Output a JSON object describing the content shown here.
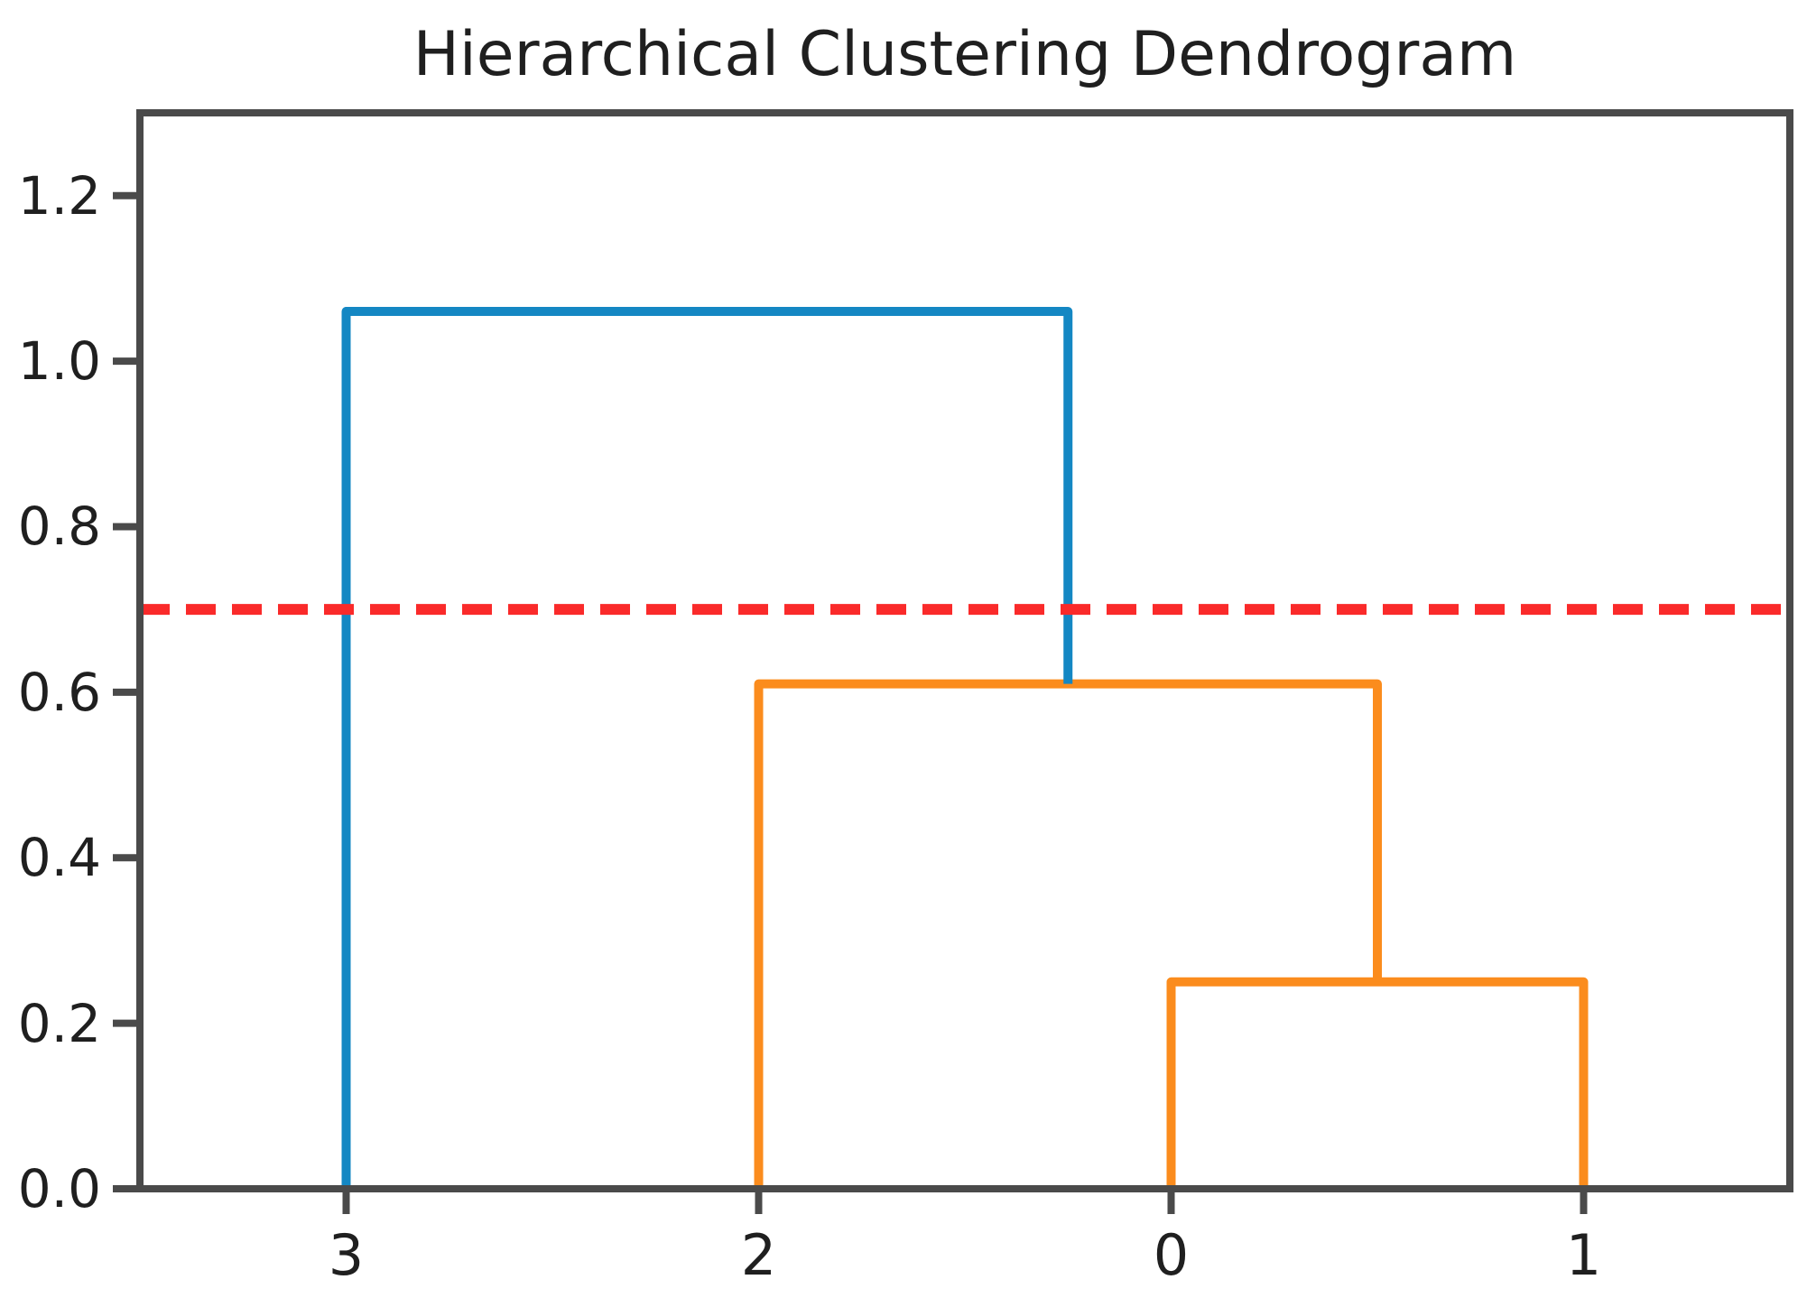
{
  "figure": {
    "title": "Hierarchical Clustering Dendrogram"
  },
  "chart_data": {
    "type": "dendrogram",
    "title": "Hierarchical Clustering Dendrogram",
    "xlabel": "",
    "ylabel": "",
    "xtick_labels": [
      "3",
      "2",
      "0",
      "1"
    ],
    "leaf_positions": [
      5,
      15,
      25,
      35
    ],
    "xlim": [
      0,
      40
    ],
    "ylim": [
      0,
      1.3
    ],
    "yticks": [
      "0.0",
      "0.2",
      "0.4",
      "0.6",
      "0.8",
      "1.0",
      "1.2"
    ],
    "grid": false,
    "legend": null,
    "links": [
      {
        "name": "leaves-0-1",
        "left_x": 25,
        "left_base": 0.0,
        "right_x": 35,
        "right_base": 0.0,
        "height": 0.25,
        "color": "#fb8c1d"
      },
      {
        "name": "cluster01-leaf2",
        "left_x": 15,
        "left_base": 0.0,
        "right_x": 30,
        "right_base": 0.25,
        "height": 0.61,
        "color": "#fb8c1d"
      },
      {
        "name": "root-leaf3-cluster",
        "left_x": 5,
        "left_base": 0.0,
        "right_x": 22.5,
        "right_base": 0.61,
        "height": 1.06,
        "color": "#1487c3"
      }
    ],
    "threshold_line": {
      "y": 0.7,
      "style": "dashed",
      "color": "#fa2a2a"
    },
    "colors": {
      "above_threshold_link": "#1487c3",
      "cluster_link": "#fb8c1d",
      "threshold": "#fa2a2a",
      "axis": "#4a4a4a",
      "text": "#1f1f1f",
      "background": "#ffffff"
    }
  }
}
